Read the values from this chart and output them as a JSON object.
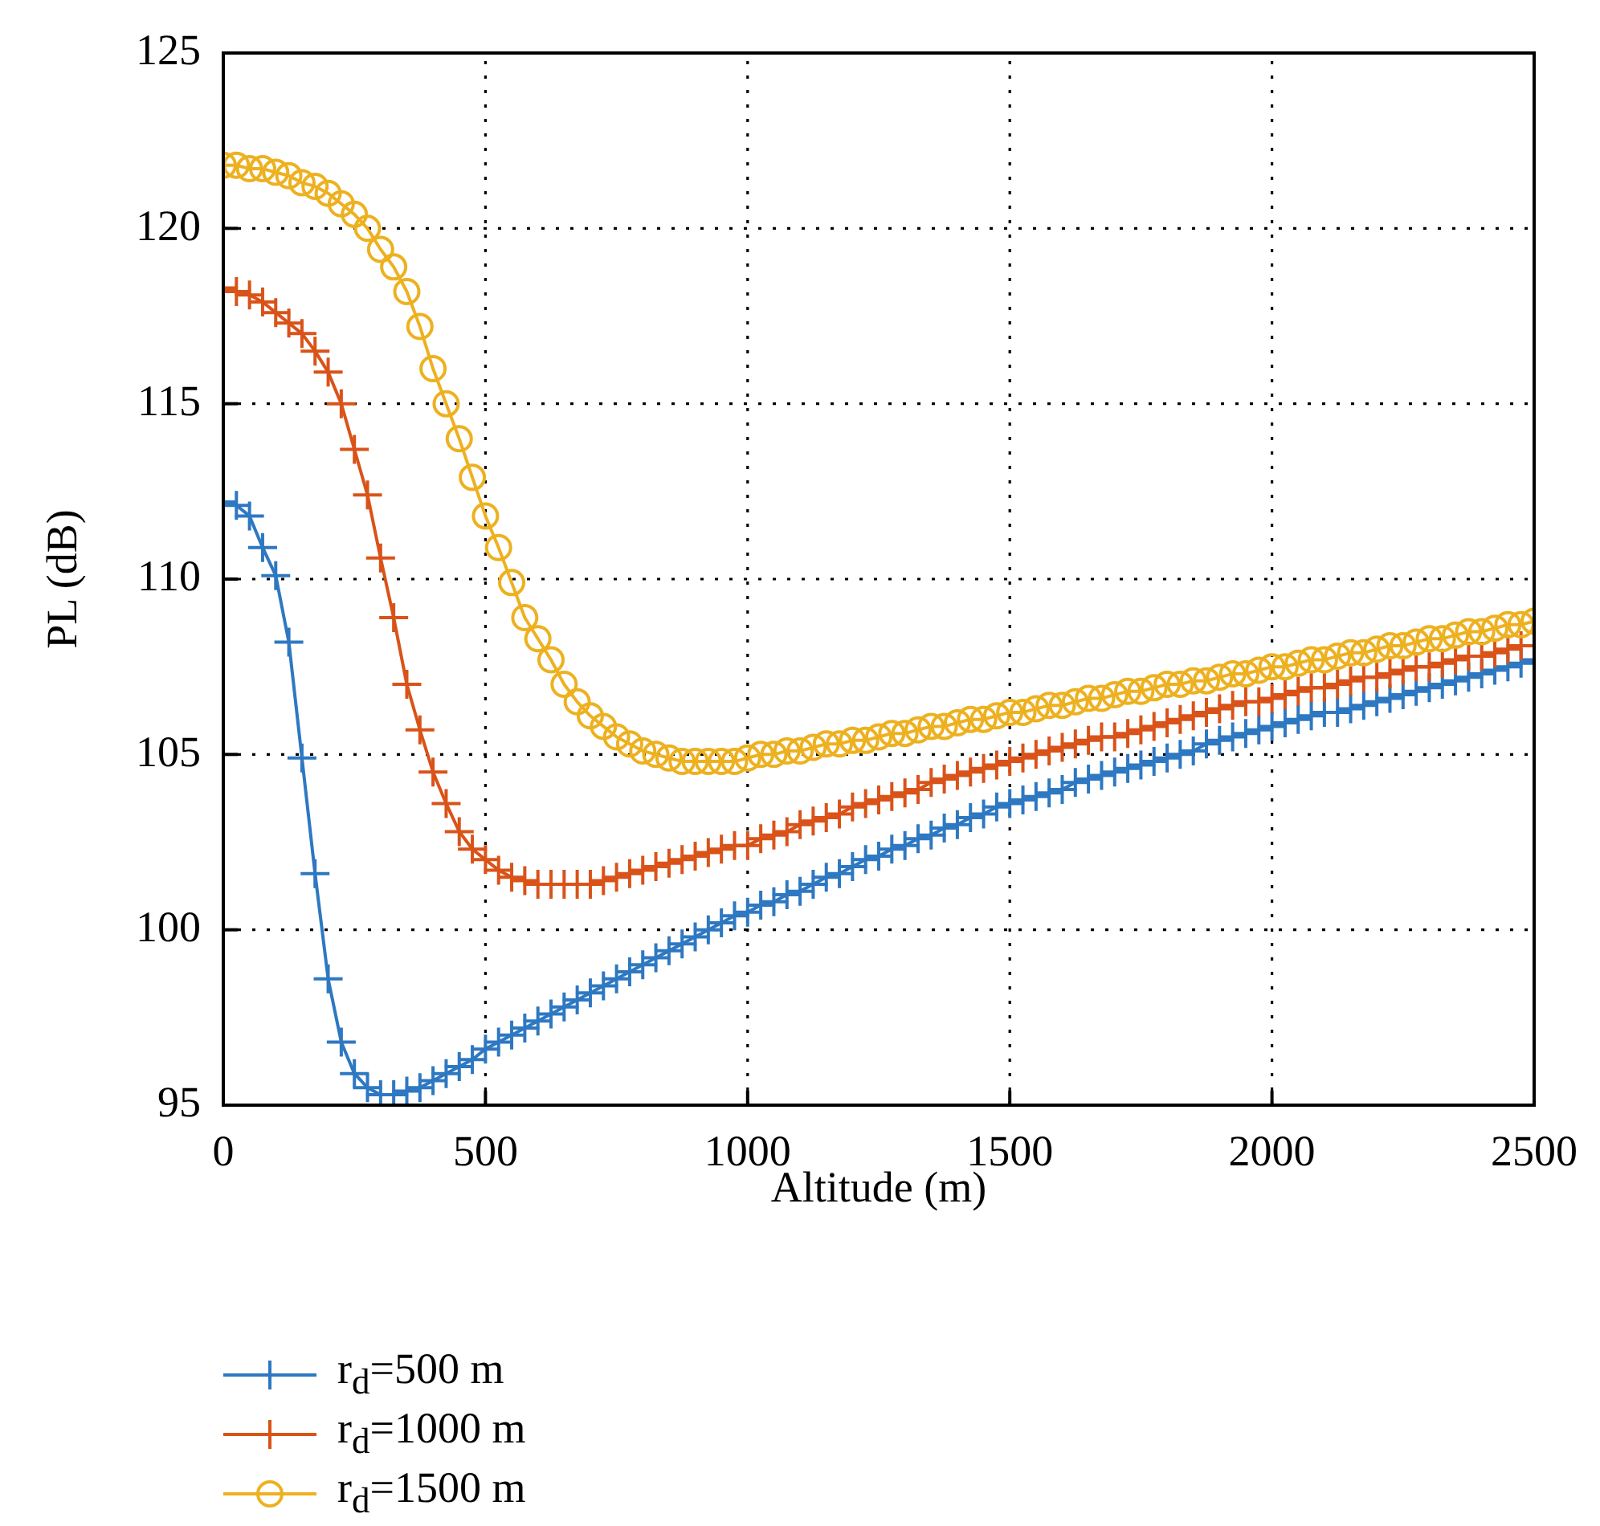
{
  "chart_data": {
    "type": "line",
    "xlabel": "Altitude (m)",
    "ylabel": "PL (dB)",
    "x": [
      0,
      25,
      50,
      75,
      100,
      125,
      150,
      175,
      200,
      225,
      250,
      275,
      300,
      325,
      350,
      375,
      400,
      425,
      450,
      475,
      500,
      525,
      550,
      575,
      600,
      625,
      650,
      675,
      700,
      725,
      750,
      775,
      800,
      825,
      850,
      875,
      900,
      925,
      950,
      975,
      1000,
      1025,
      1050,
      1075,
      1100,
      1125,
      1150,
      1175,
      1200,
      1225,
      1250,
      1275,
      1300,
      1325,
      1350,
      1375,
      1400,
      1425,
      1450,
      1475,
      1500,
      1525,
      1550,
      1575,
      1600,
      1625,
      1650,
      1675,
      1700,
      1725,
      1750,
      1775,
      1800,
      1825,
      1850,
      1875,
      1900,
      1925,
      1950,
      1975,
      2000,
      2025,
      2050,
      2075,
      2100,
      2125,
      2150,
      2175,
      2200,
      2225,
      2250,
      2275,
      2300,
      2325,
      2350,
      2375,
      2400,
      2425,
      2450,
      2475,
      2500
    ],
    "series": [
      {
        "name": "r$_{d}$=500 m",
        "color": "#2e78c2",
        "marker": "cross",
        "values": [
          112.2,
          112.1,
          111.8,
          110.9,
          110.1,
          108.2,
          104.9,
          101.6,
          98.6,
          96.8,
          95.9,
          95.5,
          95.3,
          95.3,
          95.4,
          95.5,
          95.7,
          95.9,
          96.1,
          96.3,
          96.6,
          96.8,
          97.0,
          97.2,
          97.4,
          97.6,
          97.8,
          98.0,
          98.2,
          98.4,
          98.6,
          98.8,
          99.0,
          99.2,
          99.4,
          99.6,
          99.8,
          100.0,
          100.2,
          100.4,
          100.5,
          100.7,
          100.8,
          101.0,
          101.1,
          101.3,
          101.5,
          101.6,
          101.8,
          102.0,
          102.1,
          102.3,
          102.4,
          102.6,
          102.7,
          102.9,
          103.0,
          103.2,
          103.3,
          103.5,
          103.6,
          103.7,
          103.8,
          103.9,
          104.0,
          104.2,
          104.3,
          104.4,
          104.5,
          104.6,
          104.7,
          104.8,
          104.9,
          105.0,
          105.1,
          105.3,
          105.4,
          105.5,
          105.6,
          105.7,
          105.8,
          105.9,
          106.0,
          106.1,
          106.2,
          106.2,
          106.3,
          106.4,
          106.5,
          106.6,
          106.7,
          106.8,
          106.9,
          107.0,
          107.1,
          107.2,
          107.3,
          107.4,
          107.5,
          107.6,
          107.7
        ]
      },
      {
        "name": "r$_{d}$=1000 m",
        "color": "#d95319",
        "marker": "cross",
        "values": [
          118.3,
          118.2,
          118.1,
          117.9,
          117.6,
          117.3,
          117.0,
          116.5,
          115.9,
          115.0,
          113.7,
          112.4,
          110.6,
          108.9,
          107.0,
          105.7,
          104.5,
          103.6,
          102.8,
          102.3,
          102.0,
          101.7,
          101.5,
          101.4,
          101.3,
          101.3,
          101.3,
          101.3,
          101.3,
          101.4,
          101.5,
          101.6,
          101.7,
          101.8,
          101.9,
          102.0,
          102.1,
          102.2,
          102.3,
          102.4,
          102.4,
          102.6,
          102.7,
          102.8,
          103.0,
          103.1,
          103.2,
          103.3,
          103.5,
          103.6,
          103.7,
          103.8,
          103.9,
          104.0,
          104.2,
          104.3,
          104.4,
          104.5,
          104.6,
          104.7,
          104.8,
          104.9,
          105.0,
          105.1,
          105.2,
          105.3,
          105.4,
          105.5,
          105.5,
          105.6,
          105.7,
          105.8,
          105.9,
          106.0,
          106.1,
          106.2,
          106.3,
          106.4,
          106.5,
          106.5,
          106.6,
          106.7,
          106.8,
          106.9,
          106.9,
          107.0,
          107.1,
          107.2,
          107.2,
          107.3,
          107.4,
          107.5,
          107.5,
          107.6,
          107.7,
          107.8,
          107.8,
          107.9,
          108.0,
          108.1,
          108.1
        ]
      },
      {
        "name": "r$_{d}$=1500 m",
        "color": "#edb120",
        "marker": "circle",
        "values": [
          121.8,
          121.8,
          121.7,
          121.7,
          121.6,
          121.5,
          121.3,
          121.2,
          121.0,
          120.7,
          120.4,
          120.0,
          119.4,
          118.9,
          118.2,
          117.2,
          116.0,
          115.0,
          114.0,
          112.9,
          111.8,
          110.9,
          109.9,
          108.9,
          108.3,
          107.7,
          107.0,
          106.5,
          106.1,
          105.8,
          105.5,
          105.3,
          105.1,
          105.0,
          104.9,
          104.8,
          104.8,
          104.8,
          104.8,
          104.8,
          104.9,
          105.0,
          105.0,
          105.1,
          105.1,
          105.2,
          105.3,
          105.3,
          105.4,
          105.4,
          105.5,
          105.6,
          105.6,
          105.7,
          105.8,
          105.8,
          105.9,
          106.0,
          106.0,
          106.1,
          106.2,
          106.2,
          106.3,
          106.4,
          106.4,
          106.5,
          106.6,
          106.6,
          106.7,
          106.8,
          106.8,
          106.9,
          107.0,
          107.0,
          107.1,
          107.1,
          107.2,
          107.3,
          107.3,
          107.4,
          107.5,
          107.5,
          107.6,
          107.7,
          107.7,
          107.8,
          107.9,
          107.9,
          108.0,
          108.1,
          108.1,
          108.2,
          108.3,
          108.3,
          108.4,
          108.5,
          108.5,
          108.6,
          108.7,
          108.7,
          108.8
        ]
      }
    ],
    "xlim": [
      0,
      2500
    ],
    "xticks": [
      0,
      500,
      1000,
      1500,
      2000,
      2500
    ],
    "ylim": [
      95,
      125
    ],
    "yticks": [
      95,
      100,
      105,
      110,
      115,
      120,
      125
    ],
    "grid": true,
    "legend": "bottom left",
    "line_style": "solid"
  }
}
